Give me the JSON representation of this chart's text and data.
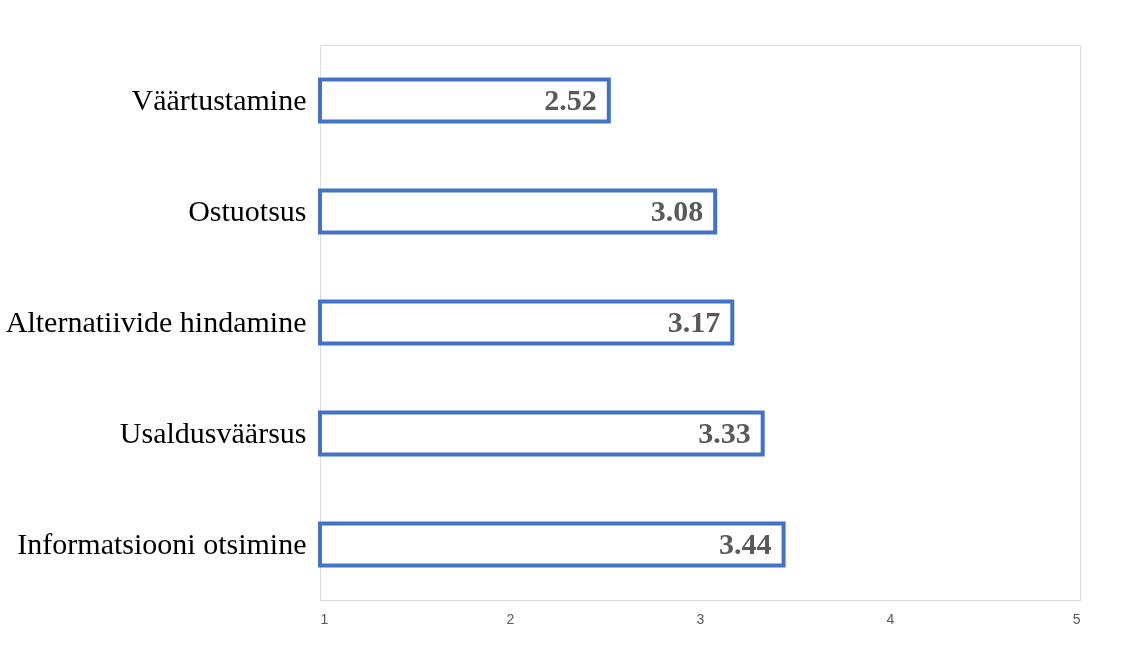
{
  "chart_data": {
    "type": "bar",
    "orientation": "horizontal",
    "categories": [
      "Väärtustamine",
      "Ostuotsus",
      "Alternatiivide hindamine",
      "Usaldusväärsus",
      "Informatsiooni otsimine"
    ],
    "values": [
      2.52,
      3.08,
      3.17,
      3.33,
      3.44
    ],
    "color": "#4472c4",
    "xlim": [
      1,
      5
    ],
    "xticks": [
      1,
      2,
      3,
      4,
      5
    ],
    "grid": false,
    "data_labels": true
  }
}
